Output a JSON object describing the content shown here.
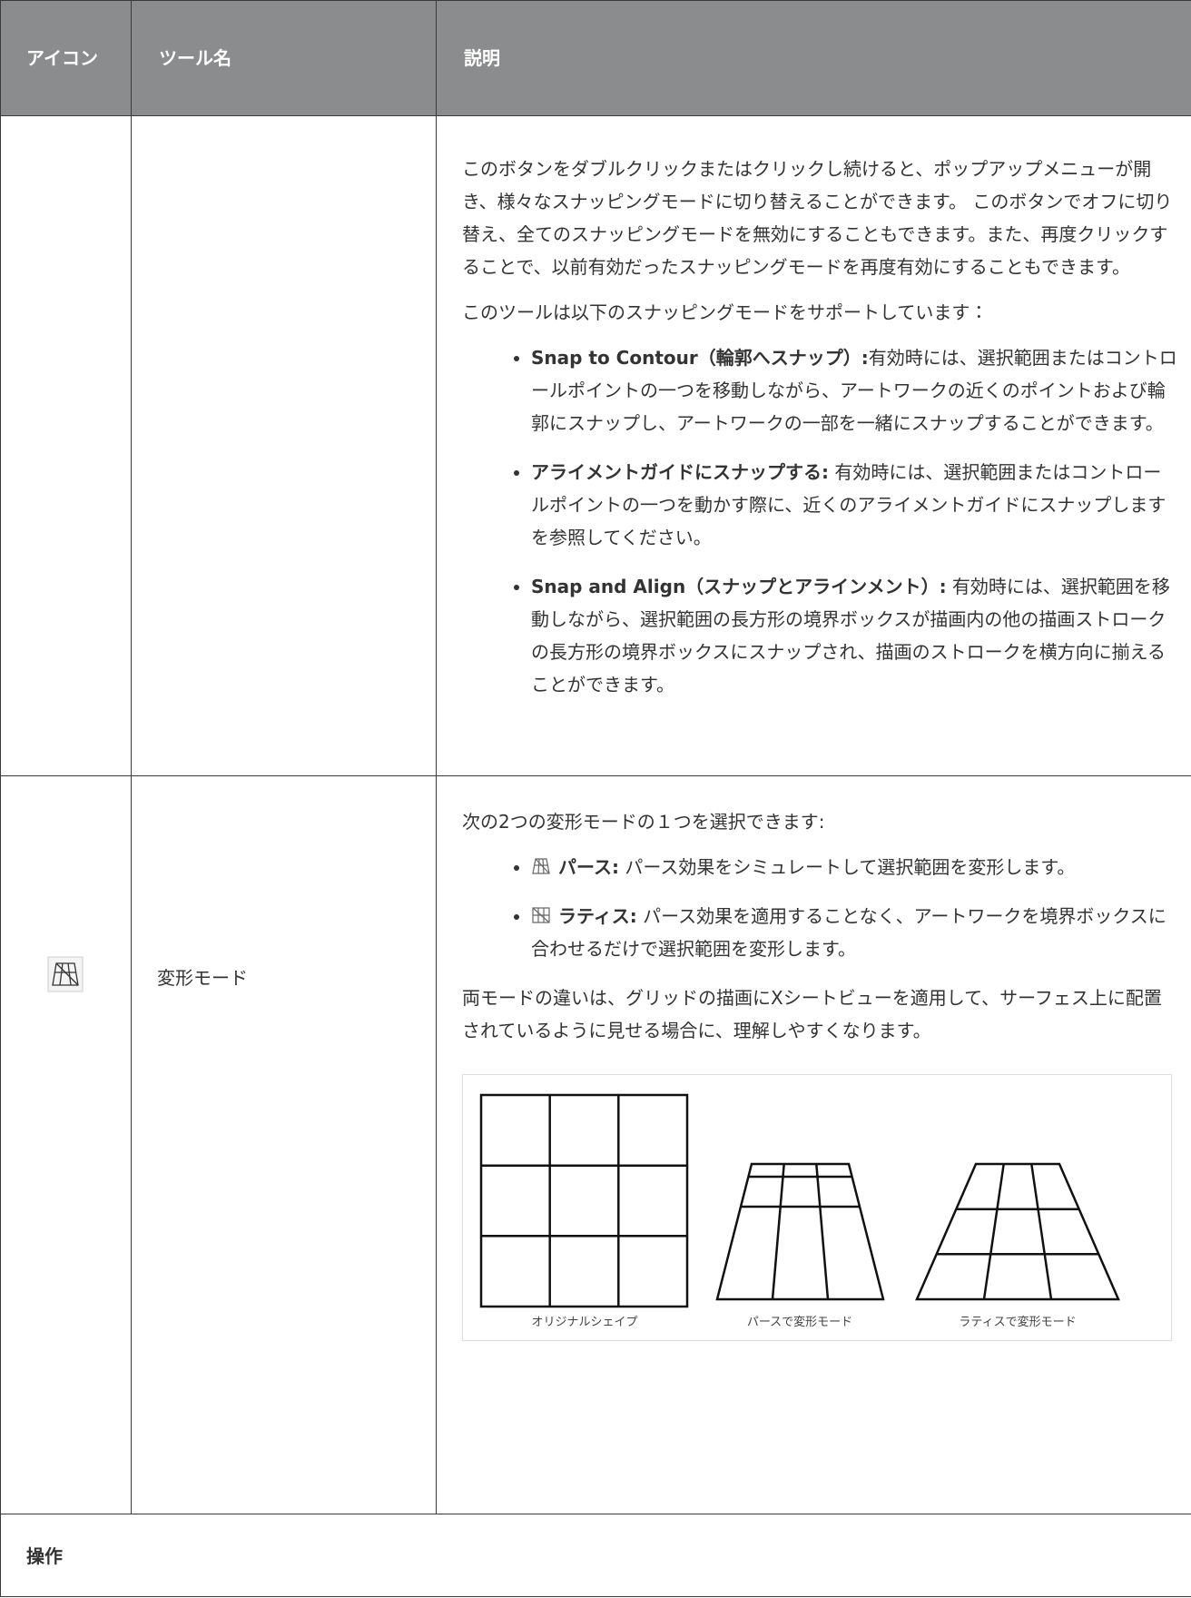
{
  "table": {
    "headers": [
      "アイコン",
      "ツール名",
      "説明"
    ],
    "rows": [
      {
        "paragraphs": [
          "このボタンをダブルクリックまたはクリックし続けると、ポップアップメニューが開き、様々なスナッピングモードに切り替えることができます。 このボタンでオフに切り替え、全てのスナッピングモードを無効にすることもできます。また、再度クリックすることで、以前有効だったスナッピングモードを再度有効にすることもできます。",
          "このツールは以下のスナッピングモードをサポートしています："
        ],
        "items": [
          {
            "term": "Snap to Contour（輪郭へスナップ）:",
            "text": "有効時には、選択範囲またはコントロールポイントの一つを移動しながら、アートワークの近くのポイントおよび輪郭にスナップし、アートワークの一部を一緒にスナップすることができます。"
          },
          {
            "term": "アライメントガイドにスナップする:",
            "text": " 有効時には、選択範囲またはコントロールポイントの一つを動かす際に、近くのアライメントガイドにスナップしますを参照してください。"
          },
          {
            "term": "Snap and Align（スナップとアラインメント）:",
            "text": " 有効時には、選択範囲を移動しながら、選択範囲の長方形の境界ボックスが描画内の他の描画ストロークの長方形の境界ボックスにスナップされ、描画のストロークを横方向に揃えることができます。"
          }
        ]
      },
      {
        "tool_name": "変形モード",
        "intro": "次の2つの変形モードの１つを選択できます:",
        "items": [
          {
            "term": "パース:",
            "text": " パース効果をシミュレートして選択範囲を変形します。"
          },
          {
            "term": "ラティス:",
            "text": " パース効果を適用することなく、アートワークを境界ボックスに合わせるだけで選択範囲を変形します。"
          }
        ],
        "note": "両モードの違いは、グリッドの描画にXシートビューを適用して、サーフェス上に配置されているように見せる場合に、理解しやすくなります。",
        "figure_captions": [
          "オリジナルシェイプ",
          "パースで変形モード",
          "ラティスで変形モード"
        ]
      }
    ],
    "section_heading": "操作"
  }
}
